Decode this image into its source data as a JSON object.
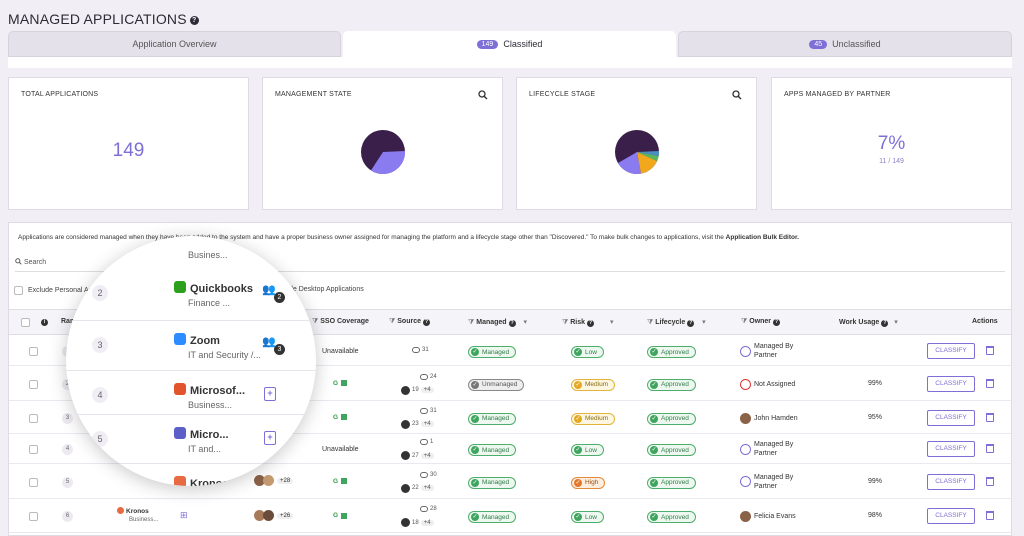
{
  "header": {
    "title": "MANAGED APPLICATIONS"
  },
  "tabs": [
    {
      "label": "Application Overview",
      "count": ""
    },
    {
      "label": "Classified",
      "count": "149"
    },
    {
      "label": "Unclassified",
      "count": "45"
    }
  ],
  "cards": {
    "total": {
      "title": "TOTAL APPLICATIONS",
      "value": "149"
    },
    "management": {
      "title": "MANAGEMENT STATE"
    },
    "lifecycle": {
      "title": "LIFECYCLE STAGE"
    },
    "partner": {
      "title": "APPS MANAGED BY PARTNER",
      "value": "7%",
      "sub": "11 / 149"
    }
  },
  "note": {
    "text": "Applications are considered managed when they have been added to the system and have a proper business owner assigned for managing the platform and a lifecycle stage other than \"Discovered.\" To make bulk changes to applications, visit the ",
    "link": "Application Bulk Editor."
  },
  "search": {
    "placeholder": "Search"
  },
  "filters": {
    "exclude_personal": "Exclude Personal Appl",
    "exclude_desktop": "de Desktop Applications"
  },
  "columns": {
    "rank": "Rank",
    "sso": "SSO Coverage",
    "source": "Source",
    "managed": "Managed",
    "risk": "Risk",
    "lifecycle": "Lifecycle",
    "owner": "Owner",
    "usage": "Work Usage",
    "actions": "Actions"
  },
  "rows": [
    {
      "sso": "Unavailable",
      "source": "31",
      "source2": "",
      "managed": "Managed",
      "risk": "Low",
      "lifecycle": "Approved",
      "owner1": "Managed By",
      "owner2": "Partner",
      "usage": "",
      "action": "CLASSIFY"
    },
    {
      "sso": "G",
      "source": "24",
      "source2": "19",
      "managed": "Unmanaged",
      "risk": "Medium",
      "lifecycle": "Approved",
      "owner1": "Not Assigned",
      "owner2": "",
      "usage": "99%",
      "action": "CLASSIFY"
    },
    {
      "sso": "G",
      "source": "31",
      "source2": "23",
      "managed": "Managed",
      "risk": "Medium",
      "lifecycle": "Approved",
      "owner1": "John Hamden",
      "owner2": "",
      "usage": "95%",
      "action": "CLASSIFY"
    },
    {
      "sso": "Unavailable",
      "source": "1",
      "source2": "27",
      "managed": "Managed",
      "risk": "Low",
      "lifecycle": "Approved",
      "owner1": "Managed By",
      "owner2": "Partner",
      "usage": "",
      "action": "CLASSIFY"
    },
    {
      "sso": "G",
      "source": "30",
      "source2": "22",
      "managed": "Managed",
      "risk": "High",
      "lifecycle": "Approved",
      "owner1": "Managed By",
      "owner2": "Partner",
      "usage": "99%",
      "action": "CLASSIFY"
    },
    {
      "sso": "G",
      "source": "28",
      "source2": "18",
      "managed": "Managed",
      "risk": "Low",
      "lifecycle": "Approved",
      "owner1": "Felicia Evans",
      "owner2": "",
      "usage": "98%",
      "action": "CLASSIFY"
    }
  ],
  "ranks": [
    "1",
    "2",
    "3",
    "4",
    "5",
    "6"
  ],
  "plus4": "+4",
  "kronos_row": {
    "name": "Kronos",
    "sub": "Business...",
    "more": "+26",
    "more_above": "+28"
  },
  "magnifier": [
    {
      "rank": "2",
      "name": "Quickbooks",
      "sub": "Finance ...",
      "count": "2",
      "logo_color": "#2ca01c"
    },
    {
      "rank": "3",
      "name": "Zoom",
      "sub": "IT and Security /...",
      "count": "3",
      "logo_color": "#2d8cff"
    },
    {
      "rank": "4",
      "name": "Microsof...",
      "sub": "Business...",
      "count": "",
      "logo_color": "#e2542d"
    },
    {
      "rank": "5",
      "name": "Micro...",
      "sub": "IT and...",
      "count": "",
      "logo_color": "#5b5fc7"
    },
    {
      "rank": "",
      "name": "Kronos",
      "sub": "Busin...",
      "count": "",
      "logo_color": "#e86a43"
    }
  ],
  "magnifier_prev_sub": "Busines...",
  "colors": {
    "accent": "#7e6fd6",
    "pie_dark": "#3a1f4a",
    "pie_light": "#8b7bf0"
  }
}
